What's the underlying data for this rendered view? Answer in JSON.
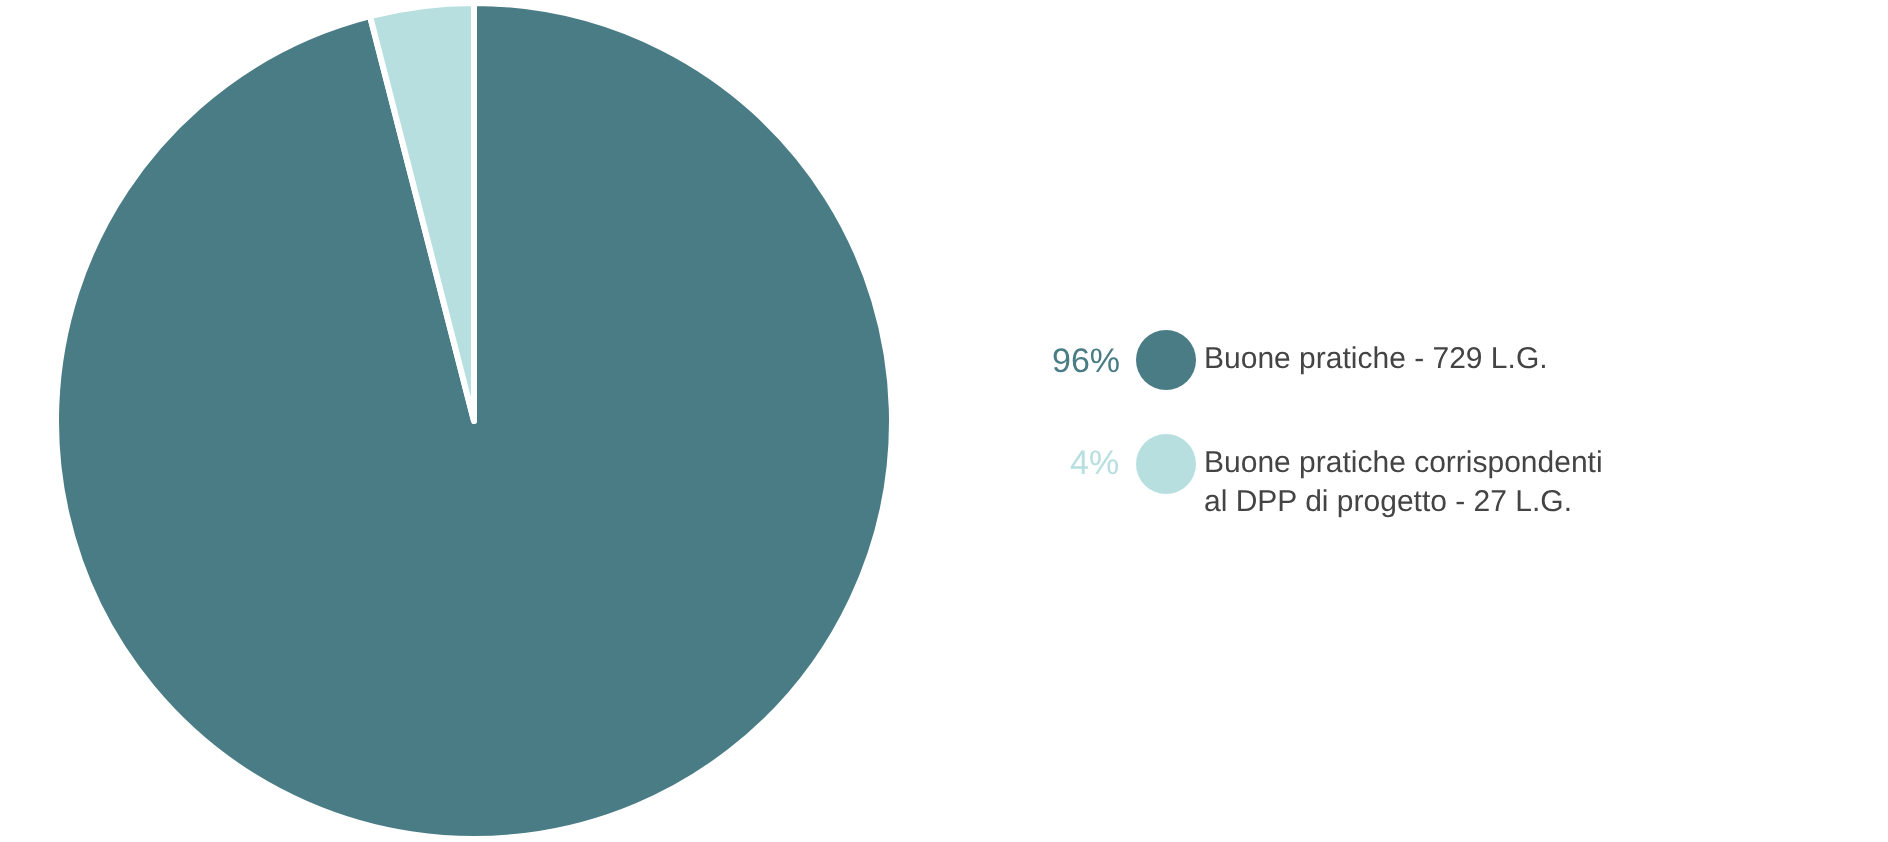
{
  "chart_data": {
    "type": "pie",
    "categories": [
      "Buone pratiche - 729 L.G.",
      "Buone pratiche corrispondenti\nal DPP di progetto - 27 L.G."
    ],
    "values": [
      96,
      4
    ],
    "value_labels": [
      "96%",
      "4%"
    ],
    "colors": [
      "#4a7c85",
      "#b8dfe0"
    ],
    "legend": "right"
  }
}
